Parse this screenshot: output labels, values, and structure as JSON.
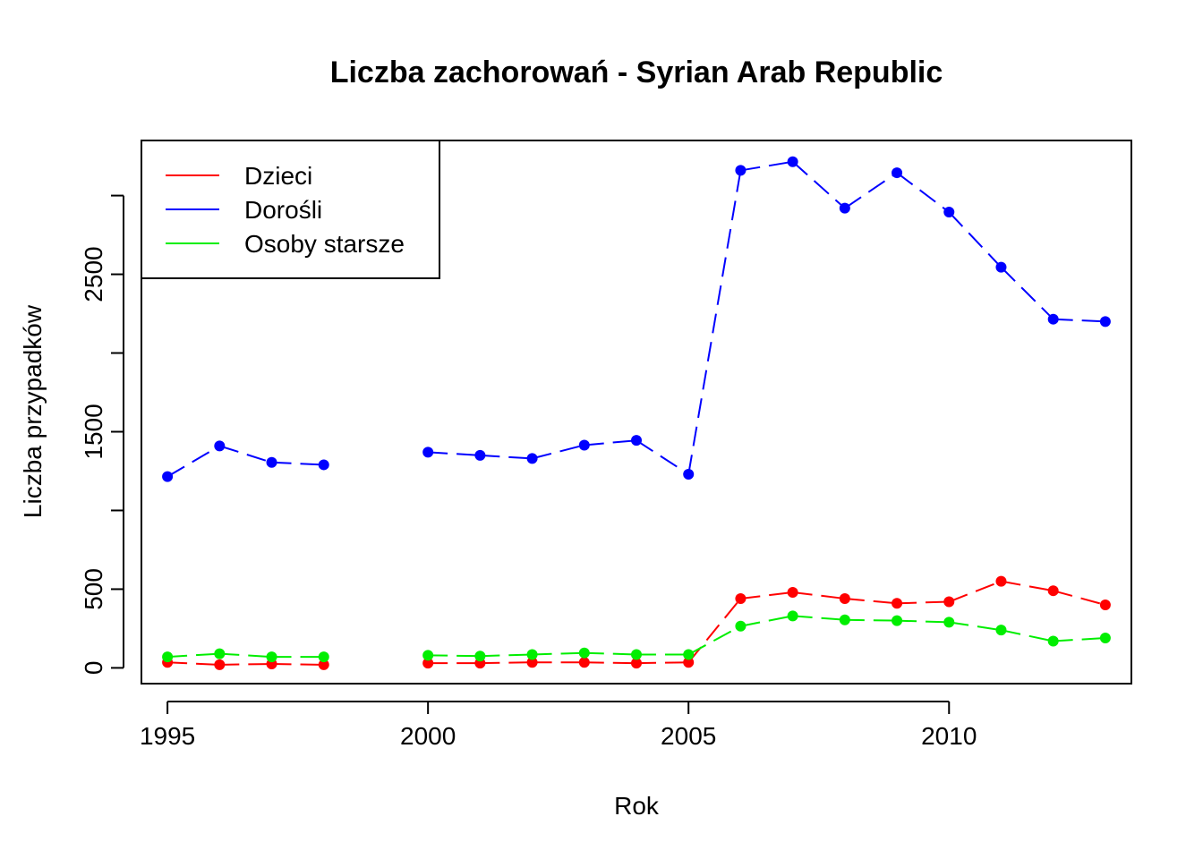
{
  "chart_data": {
    "type": "line",
    "title": "Liczba zachorowań -  Syrian Arab Republic",
    "xlabel": "Rok",
    "ylabel": "Liczba przypadków",
    "xlim": [
      1994.5,
      2013.5
    ],
    "ylim": [
      -100,
      3350
    ],
    "x_ticks": [
      1995,
      2000,
      2005,
      2010
    ],
    "y_ticks": [
      0,
      500,
      1000,
      1500,
      2000,
      2500,
      3000
    ],
    "y_tick_labels": [
      "0",
      "500",
      "",
      "1500",
      "",
      "2500",
      ""
    ],
    "legend_position": "top-left",
    "grid": false,
    "x": [
      1995,
      1996,
      1997,
      1998,
      1999,
      2000,
      2001,
      2002,
      2003,
      2004,
      2005,
      2006,
      2007,
      2008,
      2009,
      2010,
      2011,
      2012,
      2013
    ],
    "series": [
      {
        "name": "Dzieci",
        "color": "#ff0000",
        "values": [
          35,
          20,
          25,
          20,
          null,
          30,
          30,
          35,
          35,
          30,
          35,
          440,
          480,
          440,
          410,
          420,
          550,
          490,
          400
        ]
      },
      {
        "name": "Dorośli",
        "color": "#0000ff",
        "values": [
          1215,
          1410,
          1305,
          1290,
          null,
          1370,
          1350,
          1330,
          1415,
          1445,
          1230,
          3160,
          3215,
          2920,
          3145,
          2895,
          2545,
          2215,
          2200
        ]
      },
      {
        "name": "Osoby starsze",
        "color": "#00ee00",
        "values": [
          70,
          90,
          70,
          70,
          null,
          80,
          75,
          85,
          95,
          85,
          85,
          265,
          330,
          305,
          300,
          290,
          240,
          170,
          190
        ]
      }
    ]
  }
}
